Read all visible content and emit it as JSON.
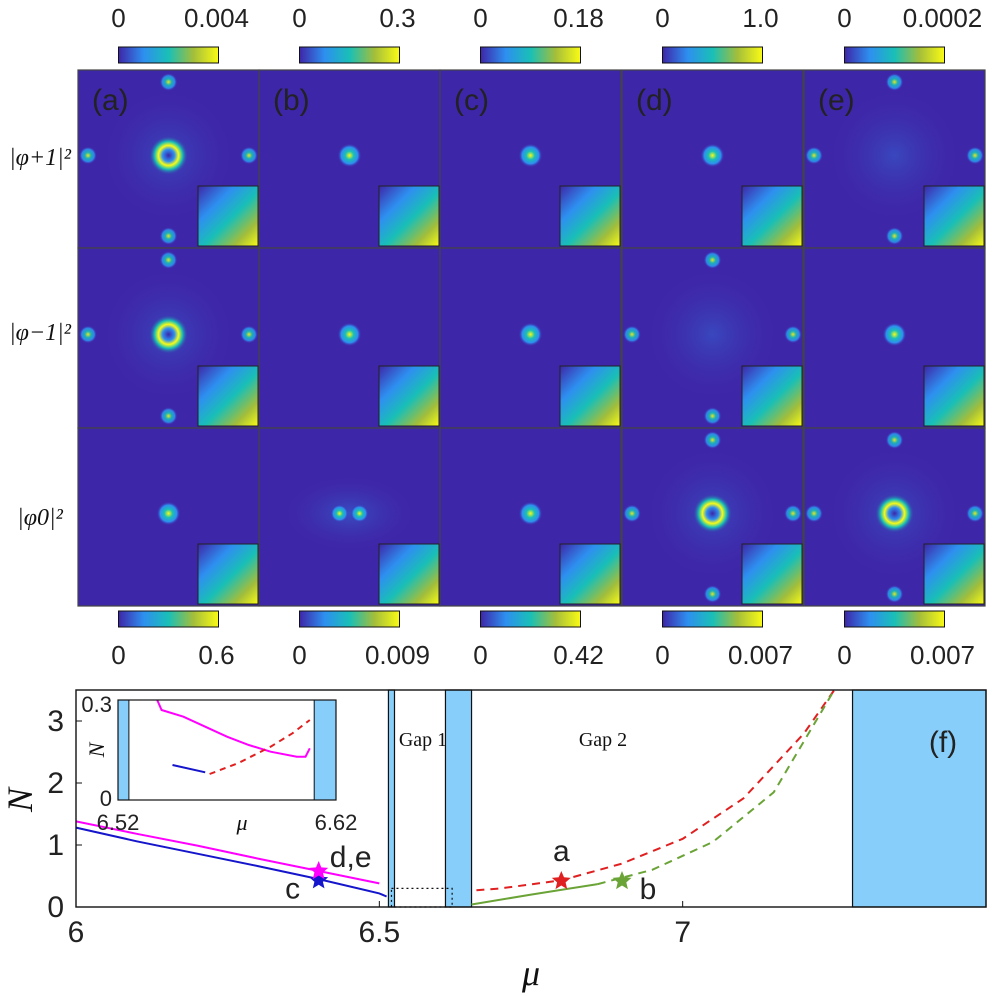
{
  "top_colorbars": [
    {
      "min": "0",
      "max": "0.004"
    },
    {
      "min": "0",
      "max": "0.3"
    },
    {
      "min": "0",
      "max": "0.18"
    },
    {
      "min": "0",
      "max": "1.0"
    },
    {
      "min": "0",
      "max": "0.0002"
    }
  ],
  "bottom_colorbars": [
    {
      "min": "0",
      "max": "0.6"
    },
    {
      "min": "0",
      "max": "0.009"
    },
    {
      "min": "0",
      "max": "0.42"
    },
    {
      "min": "0",
      "max": "0.007"
    },
    {
      "min": "0",
      "max": "0.007"
    }
  ],
  "panel_labels": [
    "(a)",
    "(b)",
    "(c)",
    "(d)",
    "(e)"
  ],
  "row_labels": [
    "|φ+1|²",
    "|φ−1|²",
    "|φ0|²"
  ],
  "colormap": [
    "#3e26a8",
    "#2e8ff0",
    "#19bfb7",
    "#a4be3a",
    "#f9fb15"
  ],
  "chart_data": {
    "type": "line",
    "panel_label": "(f)",
    "xlabel": "μ",
    "ylabel": "N",
    "xlim": [
      6.0,
      7.5
    ],
    "ylim": [
      0,
      3.5
    ],
    "xticks": [
      "6",
      "6.5",
      "7"
    ],
    "yticks": [
      "0",
      "1",
      "2",
      "3"
    ],
    "band_regions": [
      [
        6.515,
        6.525
      ],
      [
        6.609,
        6.652
      ],
      [
        7.28,
        7.5
      ]
    ],
    "gap_labels": [
      "Gap 1",
      "Gap 2"
    ],
    "series": [
      {
        "color": "#1515cc",
        "dash": false,
        "x": [
          6.0,
          6.1,
          6.2,
          6.3,
          6.4,
          6.5,
          6.512
        ],
        "y": [
          1.28,
          1.06,
          0.86,
          0.66,
          0.45,
          0.22,
          0.17
        ]
      },
      {
        "color": "#ff00ff",
        "dash": false,
        "x": [
          6.0,
          6.1,
          6.2,
          6.3,
          6.4,
          6.5
        ],
        "y": [
          1.38,
          1.18,
          0.99,
          0.78,
          0.58,
          0.38
        ]
      },
      {
        "color": "#e02020",
        "dash": true,
        "x": [
          6.66,
          6.7,
          6.8,
          6.9,
          7.0,
          7.1,
          7.2,
          7.25
        ],
        "y": [
          0.27,
          0.3,
          0.43,
          0.7,
          1.1,
          1.75,
          2.8,
          3.5
        ]
      },
      {
        "color": "#6aa336",
        "dash": false,
        "x": [
          6.652,
          6.75,
          6.86
        ],
        "y": [
          0.04,
          0.2,
          0.37
        ]
      },
      {
        "color": "#6aa336",
        "dash": true,
        "x": [
          6.86,
          6.95,
          7.05,
          7.15,
          7.25
        ],
        "y": [
          0.37,
          0.6,
          1.05,
          1.85,
          3.5
        ]
      }
    ],
    "markers": [
      {
        "label": "a",
        "x": 6.8,
        "y": 0.42,
        "color": "#e02020"
      },
      {
        "label": "b",
        "x": 6.9,
        "y": 0.42,
        "color": "#6aa336"
      },
      {
        "label": "c",
        "x": 6.4,
        "y": 0.43,
        "color": "#1515cc"
      },
      {
        "label": "d,e",
        "x": 6.4,
        "y": 0.58,
        "color": "#ff00ff"
      }
    ],
    "inset": {
      "xlabel": "μ",
      "ylabel": "N",
      "xlim": [
        6.52,
        6.62
      ],
      "ylim": [
        0,
        0.3
      ],
      "xticks": [
        "6.52",
        "6.62"
      ],
      "yticks": [
        "0",
        "0.3"
      ],
      "band_regions": [
        [
          6.52,
          6.525
        ],
        [
          6.61,
          6.62
        ]
      ],
      "series": [
        {
          "color": "#ff00ff",
          "dash": false,
          "x": [
            6.538,
            6.54,
            6.55,
            6.56,
            6.57,
            6.58,
            6.59,
            6.602,
            6.606,
            6.608
          ],
          "y": [
            0.3,
            0.27,
            0.25,
            0.22,
            0.19,
            0.165,
            0.145,
            0.13,
            0.13,
            0.155
          ]
        },
        {
          "color": "#1515cc",
          "dash": false,
          "x": [
            6.545,
            6.56
          ],
          "y": [
            0.105,
            0.083
          ]
        },
        {
          "color": "#e02020",
          "dash": true,
          "x": [
            6.562,
            6.575,
            6.59,
            6.6,
            6.608
          ],
          "y": [
            0.078,
            0.11,
            0.16,
            0.2,
            0.24
          ]
        }
      ]
    }
  }
}
